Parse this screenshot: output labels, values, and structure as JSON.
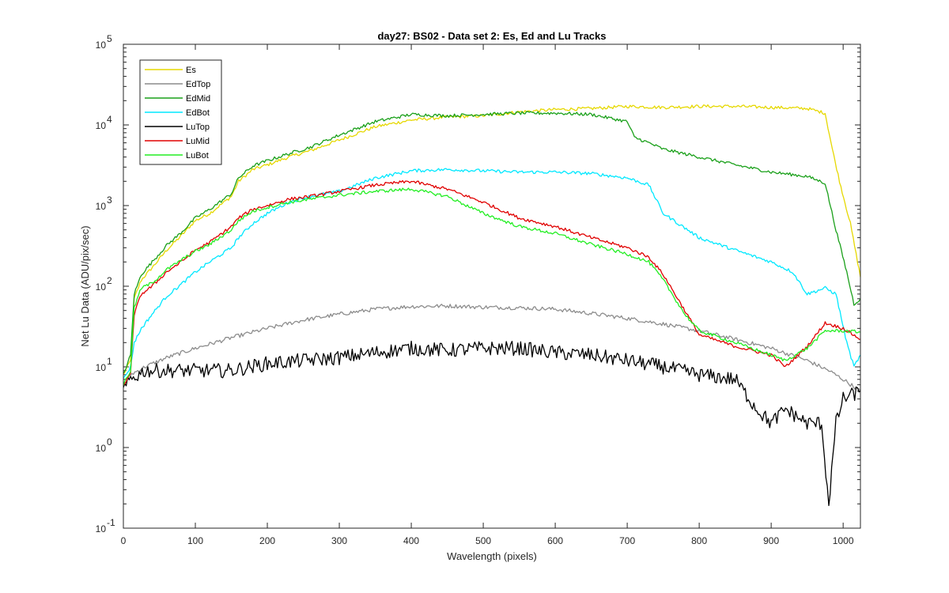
{
  "chart_data": {
    "type": "line",
    "title": "day27: BS02 - Data set 2: Es, Ed and Lu Tracks",
    "xlabel": "Wavelength (pixels)",
    "ylabel": "Net Lu Data (ADU/pix/sec)",
    "xlim": [
      0,
      1024
    ],
    "ylim": [
      0.1,
      100000
    ],
    "yscale": "log",
    "xticks": [
      0,
      100,
      200,
      300,
      400,
      500,
      600,
      700,
      800,
      900,
      1000
    ],
    "xtick_labels": [
      "0",
      "100",
      "200",
      "300",
      "400",
      "500",
      "600",
      "700",
      "800",
      "900",
      "1000"
    ],
    "yticks": [
      0.1,
      1,
      10,
      100,
      1000,
      10000,
      100000
    ],
    "ytick_labels": [
      {
        "base": "10",
        "exp": "-1"
      },
      {
        "base": "10",
        "exp": "0"
      },
      {
        "base": "10",
        "exp": "1"
      },
      {
        "base": "10",
        "exp": "2"
      },
      {
        "base": "10",
        "exp": "3"
      },
      {
        "base": "10",
        "exp": "4"
      },
      {
        "base": "10",
        "exp": "5"
      }
    ],
    "legend_position": "top-left",
    "series": [
      {
        "name": "Es",
        "color": "#e6d800",
        "points": [
          [
            0,
            8
          ],
          [
            10,
            12
          ],
          [
            15,
            70
          ],
          [
            25,
            120
          ],
          [
            40,
            170
          ],
          [
            60,
            280
          ],
          [
            80,
            420
          ],
          [
            100,
            650
          ],
          [
            120,
            800
          ],
          [
            150,
            1300
          ],
          [
            160,
            2000
          ],
          [
            180,
            2800
          ],
          [
            200,
            3200
          ],
          [
            230,
            4000
          ],
          [
            260,
            4800
          ],
          [
            300,
            6500
          ],
          [
            350,
            9500
          ],
          [
            400,
            11500
          ],
          [
            450,
            12500
          ],
          [
            500,
            13000
          ],
          [
            550,
            14500
          ],
          [
            600,
            15500
          ],
          [
            650,
            16000
          ],
          [
            700,
            17000
          ],
          [
            750,
            16500
          ],
          [
            800,
            17000
          ],
          [
            850,
            17000
          ],
          [
            900,
            16500
          ],
          [
            950,
            16000
          ],
          [
            975,
            14000
          ],
          [
            985,
            5000
          ],
          [
            995,
            2000
          ],
          [
            1010,
            600
          ],
          [
            1024,
            130
          ]
        ]
      },
      {
        "name": "EdTop",
        "color": "#8c8c8c",
        "points": [
          [
            0,
            6
          ],
          [
            10,
            8
          ],
          [
            30,
            10
          ],
          [
            60,
            13
          ],
          [
            100,
            17
          ],
          [
            150,
            23
          ],
          [
            200,
            30
          ],
          [
            250,
            38
          ],
          [
            300,
            45
          ],
          [
            350,
            52
          ],
          [
            400,
            56
          ],
          [
            450,
            57
          ],
          [
            500,
            55
          ],
          [
            550,
            54
          ],
          [
            600,
            52
          ],
          [
            650,
            46
          ],
          [
            700,
            40
          ],
          [
            750,
            34
          ],
          [
            800,
            28
          ],
          [
            850,
            22
          ],
          [
            900,
            17
          ],
          [
            950,
            12
          ],
          [
            980,
            9
          ],
          [
            1000,
            7
          ],
          [
            1024,
            5
          ]
        ]
      },
      {
        "name": "EdMid",
        "color": "#1aa01a",
        "points": [
          [
            0,
            8
          ],
          [
            10,
            14
          ],
          [
            15,
            80
          ],
          [
            25,
            140
          ],
          [
            40,
            200
          ],
          [
            60,
            320
          ],
          [
            80,
            460
          ],
          [
            100,
            700
          ],
          [
            120,
            900
          ],
          [
            150,
            1400
          ],
          [
            160,
            2200
          ],
          [
            180,
            3100
          ],
          [
            200,
            3600
          ],
          [
            230,
            4400
          ],
          [
            260,
            5300
          ],
          [
            300,
            7500
          ],
          [
            350,
            11000
          ],
          [
            400,
            13500
          ],
          [
            450,
            13000
          ],
          [
            500,
            13500
          ],
          [
            550,
            14000
          ],
          [
            600,
            14000
          ],
          [
            650,
            13500
          ],
          [
            700,
            11000
          ],
          [
            710,
            7000
          ],
          [
            730,
            6000
          ],
          [
            750,
            5000
          ],
          [
            800,
            4000
          ],
          [
            850,
            3200
          ],
          [
            900,
            2600
          ],
          [
            950,
            2300
          ],
          [
            975,
            1900
          ],
          [
            990,
            500
          ],
          [
            1005,
            150
          ],
          [
            1015,
            60
          ],
          [
            1024,
            70
          ]
        ]
      },
      {
        "name": "EdBot",
        "color": "#00e8ff",
        "points": [
          [
            0,
            7
          ],
          [
            10,
            10
          ],
          [
            15,
            20
          ],
          [
            25,
            30
          ],
          [
            40,
            45
          ],
          [
            60,
            75
          ],
          [
            80,
            105
          ],
          [
            100,
            150
          ],
          [
            120,
            200
          ],
          [
            150,
            300
          ],
          [
            160,
            400
          ],
          [
            180,
            600
          ],
          [
            200,
            800
          ],
          [
            230,
            1100
          ],
          [
            260,
            1300
          ],
          [
            300,
            1500
          ],
          [
            350,
            2200
          ],
          [
            400,
            2700
          ],
          [
            450,
            2800
          ],
          [
            500,
            2700
          ],
          [
            550,
            2600
          ],
          [
            600,
            2600
          ],
          [
            650,
            2500
          ],
          [
            700,
            2200
          ],
          [
            730,
            1800
          ],
          [
            750,
            800
          ],
          [
            800,
            400
          ],
          [
            850,
            280
          ],
          [
            900,
            200
          ],
          [
            930,
            150
          ],
          [
            950,
            80
          ],
          [
            975,
            95
          ],
          [
            990,
            80
          ],
          [
            1005,
            20
          ],
          [
            1015,
            10
          ],
          [
            1024,
            14
          ]
        ]
      },
      {
        "name": "LuTop",
        "color": "#000000",
        "points": [
          [
            0,
            5
          ],
          [
            10,
            7
          ],
          [
            30,
            9
          ],
          [
            60,
            9
          ],
          [
            100,
            9
          ],
          [
            150,
            9
          ],
          [
            200,
            11
          ],
          [
            250,
            12
          ],
          [
            300,
            13
          ],
          [
            350,
            15
          ],
          [
            400,
            17
          ],
          [
            450,
            16
          ],
          [
            500,
            17
          ],
          [
            550,
            17
          ],
          [
            600,
            15
          ],
          [
            650,
            14
          ],
          [
            700,
            12
          ],
          [
            750,
            10
          ],
          [
            800,
            8
          ],
          [
            850,
            7
          ],
          [
            880,
            3
          ],
          [
            900,
            2
          ],
          [
            920,
            3
          ],
          [
            950,
            2
          ],
          [
            970,
            2
          ],
          [
            980,
            0.2
          ],
          [
            990,
            2
          ],
          [
            1000,
            4
          ],
          [
            1024,
            5
          ]
        ]
      },
      {
        "name": "LuMid",
        "color": "#e00000",
        "points": [
          [
            0,
            6
          ],
          [
            10,
            8
          ],
          [
            15,
            45
          ],
          [
            25,
            80
          ],
          [
            40,
            100
          ],
          [
            60,
            150
          ],
          [
            80,
            200
          ],
          [
            100,
            280
          ],
          [
            120,
            350
          ],
          [
            150,
            550
          ],
          [
            160,
            700
          ],
          [
            180,
            900
          ],
          [
            200,
            1000
          ],
          [
            230,
            1200
          ],
          [
            260,
            1300
          ],
          [
            300,
            1500
          ],
          [
            350,
            1800
          ],
          [
            400,
            2000
          ],
          [
            450,
            1600
          ],
          [
            500,
            1100
          ],
          [
            550,
            700
          ],
          [
            600,
            550
          ],
          [
            650,
            400
          ],
          [
            700,
            300
          ],
          [
            730,
            230
          ],
          [
            750,
            140
          ],
          [
            780,
            50
          ],
          [
            800,
            25
          ],
          [
            850,
            18
          ],
          [
            900,
            14
          ],
          [
            920,
            10
          ],
          [
            950,
            18
          ],
          [
            975,
            35
          ],
          [
            1000,
            30
          ],
          [
            1024,
            22
          ]
        ]
      },
      {
        "name": "LuBot",
        "color": "#22ee22",
        "points": [
          [
            0,
            6
          ],
          [
            10,
            9
          ],
          [
            15,
            55
          ],
          [
            25,
            95
          ],
          [
            40,
            110
          ],
          [
            60,
            160
          ],
          [
            80,
            210
          ],
          [
            100,
            270
          ],
          [
            120,
            330
          ],
          [
            150,
            500
          ],
          [
            160,
            650
          ],
          [
            180,
            850
          ],
          [
            200,
            950
          ],
          [
            230,
            1100
          ],
          [
            260,
            1200
          ],
          [
            300,
            1350
          ],
          [
            350,
            1500
          ],
          [
            400,
            1600
          ],
          [
            450,
            1300
          ],
          [
            500,
            800
          ],
          [
            550,
            550
          ],
          [
            600,
            450
          ],
          [
            650,
            330
          ],
          [
            700,
            250
          ],
          [
            730,
            200
          ],
          [
            750,
            120
          ],
          [
            780,
            45
          ],
          [
            800,
            28
          ],
          [
            850,
            20
          ],
          [
            900,
            14
          ],
          [
            920,
            12
          ],
          [
            950,
            17
          ],
          [
            975,
            28
          ],
          [
            1000,
            28
          ],
          [
            1024,
            27
          ]
        ]
      }
    ]
  }
}
